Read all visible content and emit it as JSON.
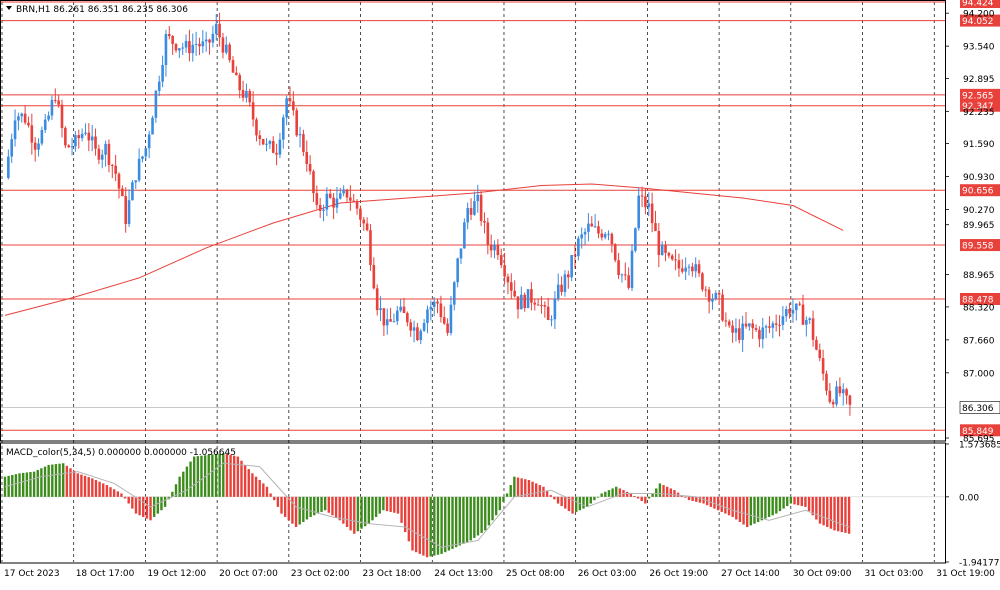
{
  "header": {
    "symbol_line": "BRN,H1  86.261 86.351 86.235 86.306",
    "macd_line": "MACD_color(5,34,5) 0.000000 0.000000 -1.056645"
  },
  "colors": {
    "bull": "#3b8be0",
    "bear": "#e8403a",
    "macd_up": "#3c8c1c",
    "macd_down": "#e8403a",
    "level_line": "#e8403a",
    "ma_line": "#e8403a",
    "signal_line": "#b4b4b4",
    "grid": "#000000",
    "current_price_line": "#c8c8c8"
  },
  "chart_data": [
    {
      "type": "candlestick",
      "instrument": "BRN",
      "timeframe": "H1",
      "ohlc_last": {
        "open": 86.261,
        "high": 86.351,
        "low": 86.235,
        "close": 86.306
      },
      "y_ticks": [
        "94.200",
        "93.540",
        "92.895",
        "92.235",
        "91.590",
        "90.930",
        "90.270",
        "89.965",
        "88.965",
        "88.320",
        "87.660",
        "87.000",
        "85.695"
      ],
      "ylim": [
        85.695,
        94.424
      ],
      "price_levels": [
        {
          "label": "94.424",
          "value": 94.424
        },
        {
          "label": "94.052",
          "value": 94.052
        },
        {
          "label": "92.565",
          "value": 92.565
        },
        {
          "label": "92.347",
          "value": 92.347
        },
        {
          "label": "90.656",
          "value": 90.656
        },
        {
          "label": "89.558",
          "value": 89.558
        },
        {
          "label": "88.478",
          "value": 88.478
        },
        {
          "label": "85.849",
          "value": 85.849
        }
      ],
      "current_price": {
        "label": "86.306",
        "value": 86.306
      },
      "x_labels": [
        "17 Oct 2023",
        "18 Oct 17:00",
        "19 Oct 12:00",
        "20 Oct 07:00",
        "23 Oct 02:00",
        "23 Oct 18:00",
        "24 Oct 13:00",
        "25 Oct 08:00",
        "26 Oct 03:00",
        "26 Oct 19:00",
        "27 Oct 14:00",
        "30 Oct 09:00",
        "31 Oct 03:00",
        "31 Oct 19:00"
      ],
      "close_path": [
        [
          0,
          90.9
        ],
        [
          3,
          92.2
        ],
        [
          6,
          92.1
        ],
        [
          9,
          91.6
        ],
        [
          12,
          91.9
        ],
        [
          15,
          92.6
        ],
        [
          18,
          91.5
        ],
        [
          21,
          91.6
        ],
        [
          24,
          91.9
        ],
        [
          27,
          91.4
        ],
        [
          30,
          91.5
        ],
        [
          33,
          91.0
        ],
        [
          36,
          90.1
        ],
        [
          39,
          91.0
        ],
        [
          42,
          91.5
        ],
        [
          45,
          92.6
        ],
        [
          48,
          93.7
        ],
        [
          51,
          93.6
        ],
        [
          54,
          93.5
        ],
        [
          57,
          93.6
        ],
        [
          60,
          93.5
        ],
        [
          63,
          93.9
        ],
        [
          66,
          93.4
        ],
        [
          69,
          92.8
        ],
        [
          72,
          92.5
        ],
        [
          75,
          91.9
        ],
        [
          78,
          91.5
        ],
        [
          81,
          91.5
        ],
        [
          84,
          92.5
        ],
        [
          87,
          91.9
        ],
        [
          90,
          91.3
        ],
        [
          93,
          90.2
        ],
        [
          96,
          90.5
        ],
        [
          99,
          90.4
        ],
        [
          102,
          90.6
        ],
        [
          105,
          90.3
        ],
        [
          108,
          89.8
        ],
        [
          111,
          88.4
        ],
        [
          114,
          87.9
        ],
        [
          117,
          88.2
        ],
        [
          120,
          88.1
        ],
        [
          123,
          87.8
        ],
        [
          126,
          88.3
        ],
        [
          129,
          88.4
        ],
        [
          132,
          87.8
        ],
        [
          135,
          89.2
        ],
        [
          138,
          90.3
        ],
        [
          141,
          90.4
        ],
        [
          144,
          89.6
        ],
        [
          147,
          89.5
        ],
        [
          150,
          88.9
        ],
        [
          153,
          88.4
        ],
        [
          156,
          88.5
        ],
        [
          159,
          88.5
        ],
        [
          162,
          88.0
        ],
        [
          165,
          88.6
        ],
        [
          168,
          89.0
        ],
        [
          171,
          89.6
        ],
        [
          174,
          89.9
        ],
        [
          177,
          89.8
        ],
        [
          180,
          89.9
        ],
        [
          183,
          89.1
        ],
        [
          186,
          88.7
        ],
        [
          189,
          90.5
        ],
        [
          192,
          90.3
        ],
        [
          195,
          89.5
        ],
        [
          198,
          89.2
        ],
        [
          201,
          89.1
        ],
        [
          204,
          89.3
        ],
        [
          207,
          88.9
        ],
        [
          210,
          88.6
        ],
        [
          213,
          88.4
        ],
        [
          216,
          87.8
        ],
        [
          219,
          87.8
        ],
        [
          222,
          87.9
        ],
        [
          225,
          87.8
        ],
        [
          228,
          87.9
        ],
        [
          231,
          88.1
        ],
        [
          234,
          88.3
        ],
        [
          237,
          88.2
        ],
        [
          240,
          88.0
        ],
        [
          243,
          87.2
        ],
        [
          246,
          86.5
        ],
        [
          249,
          86.6
        ],
        [
          252,
          86.3
        ]
      ],
      "moving_average": [
        [
          0,
          88.15
        ],
        [
          20,
          88.5
        ],
        [
          40,
          88.9
        ],
        [
          60,
          89.5
        ],
        [
          80,
          90.0
        ],
        [
          100,
          90.4
        ],
        [
          120,
          90.5
        ],
        [
          140,
          90.6
        ],
        [
          160,
          90.75
        ],
        [
          175,
          90.78
        ],
        [
          190,
          90.7
        ],
        [
          205,
          90.6
        ],
        [
          220,
          90.5
        ],
        [
          235,
          90.35
        ],
        [
          250,
          89.85
        ]
      ]
    },
    {
      "type": "histogram",
      "indicator": "MACD_color(5,34,5)",
      "y_ticks": [
        "1.573685",
        "0.00",
        "-1.941770"
      ],
      "ylim": [
        -1.94177,
        1.573685
      ],
      "values": [
        [
          0,
          0.6
        ],
        [
          4,
          0.7
        ],
        [
          8,
          0.75
        ],
        [
          12,
          0.95
        ],
        [
          16,
          1.0
        ],
        [
          20,
          0.7
        ],
        [
          24,
          0.55
        ],
        [
          28,
          0.35
        ],
        [
          32,
          0.1
        ],
        [
          36,
          -0.5
        ],
        [
          40,
          -0.7
        ],
        [
          44,
          -0.3
        ],
        [
          48,
          0.6
        ],
        [
          52,
          1.2
        ],
        [
          56,
          1.25
        ],
        [
          60,
          1.3
        ],
        [
          64,
          1.2
        ],
        [
          68,
          0.7
        ],
        [
          72,
          0.3
        ],
        [
          76,
          -0.5
        ],
        [
          80,
          -0.9
        ],
        [
          84,
          -0.6
        ],
        [
          88,
          -0.4
        ],
        [
          92,
          -0.7
        ],
        [
          96,
          -1.1
        ],
        [
          100,
          -0.8
        ],
        [
          104,
          -0.4
        ],
        [
          108,
          -0.5
        ],
        [
          112,
          -1.6
        ],
        [
          116,
          -1.8
        ],
        [
          120,
          -1.7
        ],
        [
          124,
          -1.5
        ],
        [
          128,
          -1.3
        ],
        [
          132,
          -1.0
        ],
        [
          136,
          -0.4
        ],
        [
          140,
          0.6
        ],
        [
          144,
          0.5
        ],
        [
          148,
          0.3
        ],
        [
          152,
          -0.2
        ],
        [
          156,
          -0.5
        ],
        [
          160,
          -0.3
        ],
        [
          164,
          0.1
        ],
        [
          168,
          0.3
        ],
        [
          172,
          0.1
        ],
        [
          176,
          -0.2
        ],
        [
          180,
          0.4
        ],
        [
          184,
          0.2
        ],
        [
          188,
          -0.1
        ],
        [
          192,
          -0.2
        ],
        [
          196,
          -0.4
        ],
        [
          200,
          -0.6
        ],
        [
          204,
          -0.9
        ],
        [
          208,
          -0.7
        ],
        [
          212,
          -0.5
        ],
        [
          216,
          -0.2
        ],
        [
          220,
          -0.3
        ],
        [
          224,
          -0.8
        ],
        [
          228,
          -1.0
        ],
        [
          232,
          -1.1
        ]
      ],
      "signal": [
        [
          0,
          0.3
        ],
        [
          10,
          0.6
        ],
        [
          20,
          0.75
        ],
        [
          30,
          0.4
        ],
        [
          40,
          -0.3
        ],
        [
          50,
          0.2
        ],
        [
          60,
          1.0
        ],
        [
          70,
          0.9
        ],
        [
          80,
          -0.3
        ],
        [
          90,
          -0.6
        ],
        [
          100,
          -0.8
        ],
        [
          110,
          -0.9
        ],
        [
          120,
          -1.5
        ],
        [
          130,
          -1.3
        ],
        [
          140,
          0.0
        ],
        [
          150,
          0.2
        ],
        [
          160,
          -0.3
        ],
        [
          170,
          0.1
        ],
        [
          180,
          0.1
        ],
        [
          190,
          0.0
        ],
        [
          200,
          -0.4
        ],
        [
          210,
          -0.7
        ],
        [
          220,
          -0.4
        ],
        [
          232,
          -0.9
        ]
      ]
    }
  ]
}
